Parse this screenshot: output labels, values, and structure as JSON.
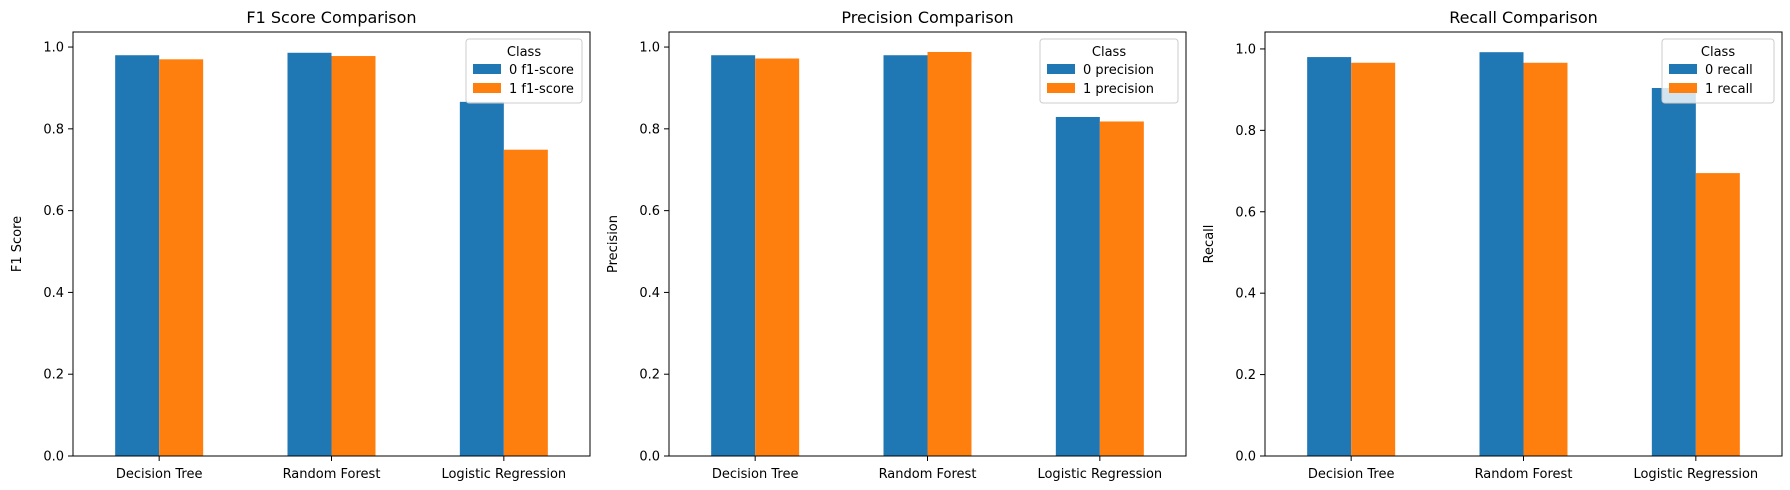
{
  "figure": {
    "background": "#ffffff"
  },
  "colors": {
    "series0": "#1f77b4",
    "series1": "#ff7f0e",
    "axis": "#000000",
    "legend_border": "#cccccc"
  },
  "chart_data": [
    {
      "type": "bar",
      "title": "F1 Score Comparison",
      "xlabel": "",
      "ylabel": "F1 Score",
      "ylim": [
        0,
        1.0368
      ],
      "yticks": [
        "0.0",
        "0.2",
        "0.4",
        "0.6",
        "0.8",
        "1.0"
      ],
      "grid": false,
      "legend_position": "top-right",
      "legend_title": "Class",
      "categories": [
        "Decision Tree",
        "Random Forest",
        "Logistic Regression"
      ],
      "series": [
        {
          "name": "0 f1-score",
          "values": [
            0.98,
            0.986,
            0.866
          ]
        },
        {
          "name": "1 f1-score",
          "values": [
            0.97,
            0.978,
            0.749
          ]
        }
      ]
    },
    {
      "type": "bar",
      "title": "Precision Comparison",
      "xlabel": "",
      "ylabel": "Precision",
      "ylim": [
        0,
        1.0368
      ],
      "yticks": [
        "0.0",
        "0.2",
        "0.4",
        "0.6",
        "0.8",
        "1.0"
      ],
      "grid": false,
      "legend_position": "top-right",
      "legend_title": "Class",
      "categories": [
        "Decision Tree",
        "Random Forest",
        "Logistic Regression"
      ],
      "series": [
        {
          "name": "0 precision",
          "values": [
            0.98,
            0.98,
            0.829
          ]
        },
        {
          "name": "1 precision",
          "values": [
            0.972,
            0.988,
            0.818
          ]
        }
      ]
    },
    {
      "type": "bar",
      "title": "Recall Comparison",
      "xlabel": "",
      "ylabel": "Recall",
      "ylim": [
        0,
        1.0416
      ],
      "yticks": [
        "0.0",
        "0.2",
        "0.4",
        "0.6",
        "0.8",
        "1.0"
      ],
      "grid": false,
      "legend_position": "top-right",
      "legend_title": "Class",
      "categories": [
        "Decision Tree",
        "Random Forest",
        "Logistic Regression"
      ],
      "series": [
        {
          "name": "0 recall",
          "values": [
            0.98,
            0.992,
            0.904
          ]
        },
        {
          "name": "1 recall",
          "values": [
            0.966,
            0.966,
            0.695
          ]
        }
      ]
    }
  ]
}
